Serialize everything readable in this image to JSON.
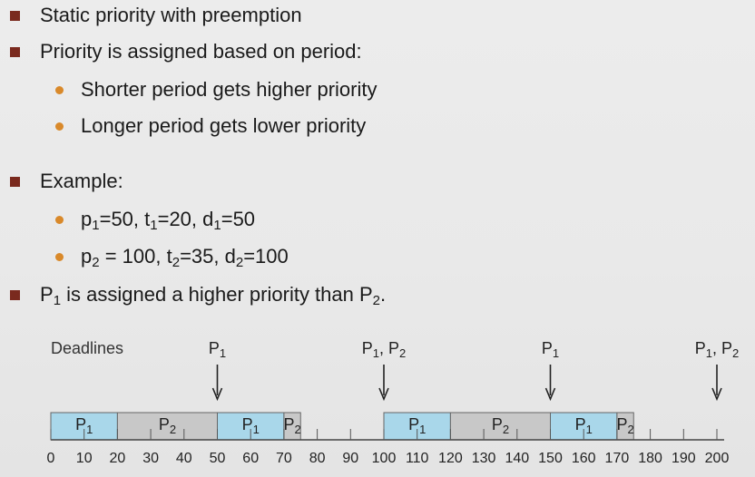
{
  "bullets": [
    {
      "text": "Static priority with preemption"
    },
    {
      "text": "Priority is assigned based on period:"
    },
    {
      "text": "Example:"
    }
  ],
  "subbullets": [
    {
      "text": "Shorter period gets higher priority"
    },
    {
      "text": "Longer period gets lower priority"
    }
  ],
  "example": {
    "p1": {
      "p": "p",
      "sub": "1",
      "eq": "=50, t",
      "sub2": "1",
      "eq2": "=20, d",
      "sub3": "1",
      "eq3": "=50"
    },
    "p2": {
      "p": "p",
      "sub": "2",
      "eq": " = 100, t",
      "sub2": "2",
      "eq2": "=35, d",
      "sub3": "2",
      "eq3": "=100"
    }
  },
  "statement": {
    "a": "P",
    "asub": "1",
    "b": " is assigned a higher priority than P",
    "bsub": "2",
    "c": "."
  },
  "diagram": {
    "deadlines_label": "Deadlines",
    "deadline_markers": [
      {
        "time": 50,
        "label": "P",
        "sub": "1",
        "label2": "",
        "sub2": ""
      },
      {
        "time": 100,
        "label": "P",
        "sub": "1",
        "label2": ", P",
        "sub2": "2"
      },
      {
        "time": 150,
        "label": "P",
        "sub": "1",
        "label2": "",
        "sub2": ""
      },
      {
        "time": 200,
        "label": "P",
        "sub": "1",
        "label2": ", P",
        "sub2": "2"
      }
    ],
    "segments": [
      {
        "start": 0,
        "end": 20,
        "proc": "P",
        "sub": "1",
        "color": "#a9d7ea"
      },
      {
        "start": 20,
        "end": 50,
        "proc": "P",
        "sub": "2",
        "color": "#c8c8c8"
      },
      {
        "start": 50,
        "end": 70,
        "proc": "P",
        "sub": "1",
        "color": "#a9d7ea"
      },
      {
        "start": 70,
        "end": 75,
        "proc": "P",
        "sub": "2",
        "color": "#c8c8c8"
      },
      {
        "start": 100,
        "end": 120,
        "proc": "P",
        "sub": "1",
        "color": "#a9d7ea"
      },
      {
        "start": 120,
        "end": 150,
        "proc": "P",
        "sub": "2",
        "color": "#c8c8c8"
      },
      {
        "start": 150,
        "end": 170,
        "proc": "P",
        "sub": "1",
        "color": "#a9d7ea"
      },
      {
        "start": 170,
        "end": 175,
        "proc": "P",
        "sub": "2",
        "color": "#c8c8c8"
      }
    ],
    "ticks": [
      "0",
      "10",
      "20",
      "30",
      "40",
      "50",
      "60",
      "70",
      "80",
      "90",
      "100",
      "110",
      "120",
      "130",
      "140",
      "150",
      "160",
      "170",
      "180",
      "190",
      "200"
    ],
    "tick_values": [
      0,
      10,
      20,
      30,
      40,
      50,
      60,
      70,
      80,
      90,
      100,
      110,
      120,
      130,
      140,
      150,
      160,
      170,
      180,
      190,
      200
    ]
  }
}
